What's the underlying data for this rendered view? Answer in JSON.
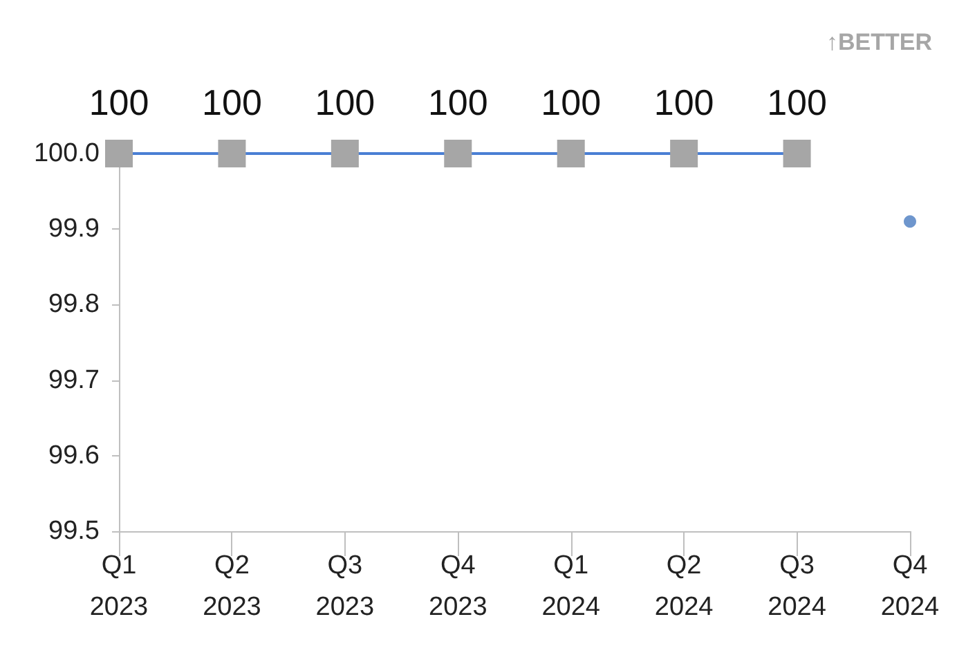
{
  "chart_data": {
    "type": "line",
    "categories": [
      "Q1\n2023",
      "Q2\n2023",
      "Q3\n2023",
      "Q4\n2023",
      "Q1\n2024",
      "Q2\n2024",
      "Q3\n2024",
      "Q4\n2024"
    ],
    "series": [
      {
        "color": "#4a7fd4",
        "colors": [
          "#a6a6a6",
          "#a6a6a6",
          "#a6a6a6",
          "#a6a6a6",
          "#a6a6a6",
          "#a6a6a6",
          "#a6a6a6",
          null
        ],
        "marker": "square",
        "values": [
          100,
          100,
          100,
          100,
          100,
          100,
          100,
          null
        ],
        "value_labels": [
          "100",
          "100",
          "100",
          "100",
          "100",
          "100",
          "100",
          null
        ]
      },
      {
        "type": "scatter",
        "color": "#4a7cc0",
        "marker": "circle",
        "values": [
          null,
          null,
          null,
          null,
          null,
          null,
          null,
          99.91
        ]
      }
    ],
    "ylim": [
      99.5,
      100.0
    ],
    "yticks": [
      99.5,
      99.6,
      99.7,
      99.8,
      99.9,
      {
        "value": 100.0,
        "label": "100.0"
      }
    ],
    "annotations": [
      "↑BETTER"
    ],
    "grid": false
  }
}
